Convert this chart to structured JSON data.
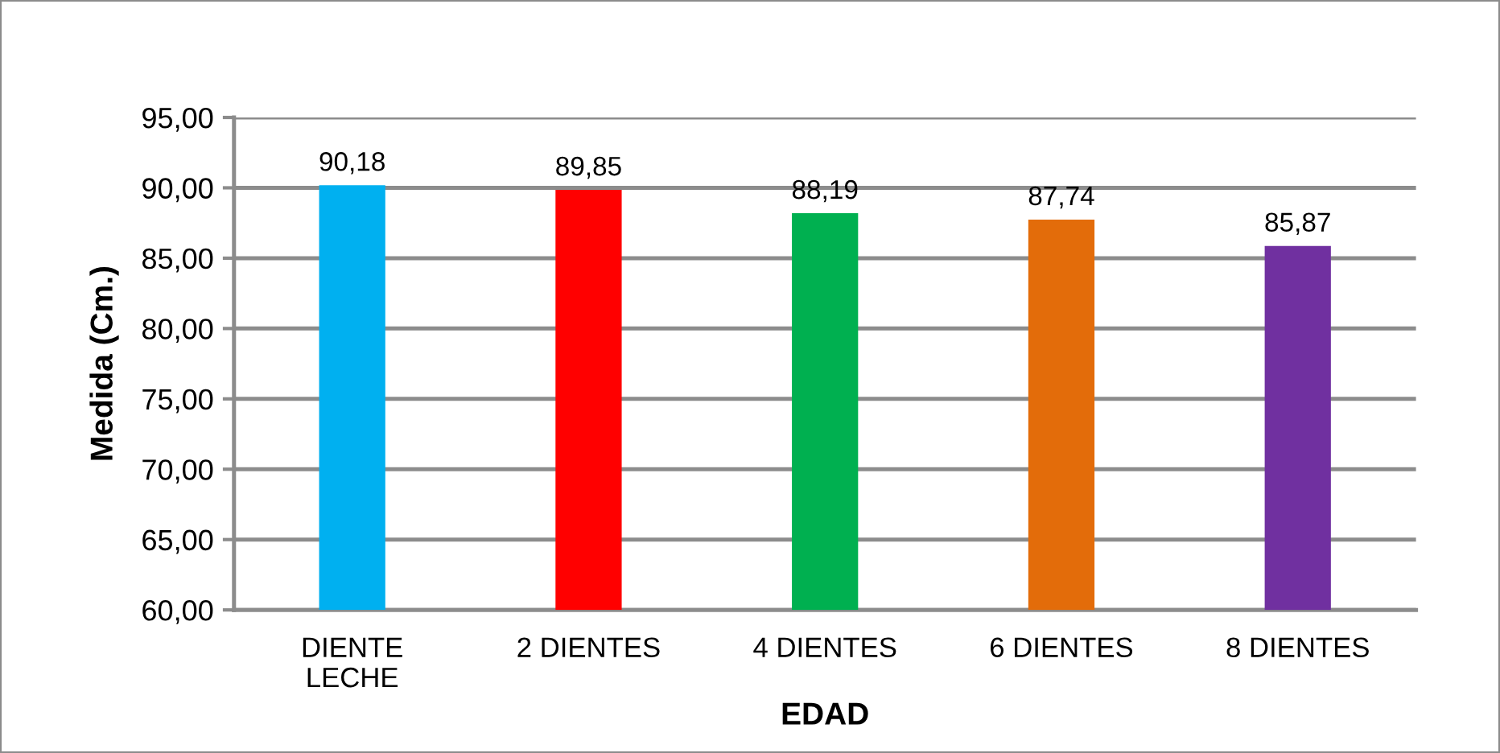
{
  "chart_data": {
    "type": "bar",
    "xlabel": "EDAD",
    "ylabel": "Medida (Cm.)",
    "categories": [
      "DIENTE\nLECHE",
      "2 DIENTES",
      "4 DIENTES",
      "6 DIENTES",
      "8 DIENTES"
    ],
    "values": [
      90.18,
      89.85,
      88.19,
      87.74,
      85.87
    ],
    "colors": [
      "#00b0f0",
      "#ff0000",
      "#00b050",
      "#e36c0a",
      "#7030a0"
    ],
    "value_labels": [
      "90,18",
      "89,85",
      "88,19",
      "87,74",
      "85,87"
    ],
    "ylim": [
      60,
      95
    ],
    "yticks": [
      {
        "value": 60,
        "label": "60,00"
      },
      {
        "value": 65,
        "label": "65,00"
      },
      {
        "value": 70,
        "label": "70,00"
      },
      {
        "value": 75,
        "label": "75,00"
      },
      {
        "value": 80,
        "label": "80,00"
      },
      {
        "value": 85,
        "label": "85,00"
      },
      {
        "value": 90,
        "label": "90,00"
      },
      {
        "value": 95,
        "label": "95,00"
      }
    ],
    "grid": "y",
    "legend": false
  }
}
